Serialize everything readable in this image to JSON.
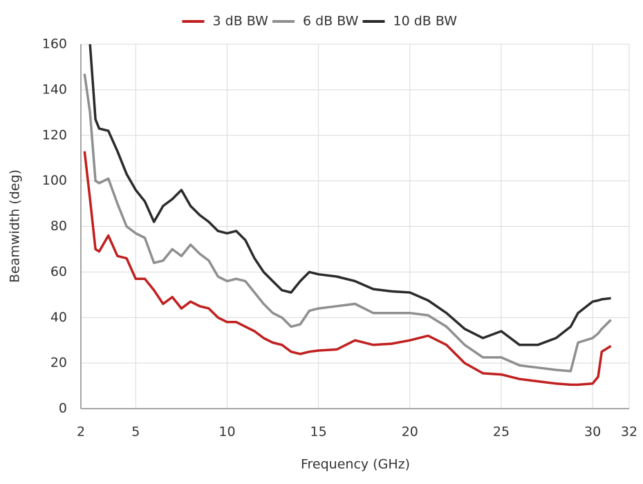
{
  "chart_data": {
    "type": "line",
    "x_label": "Frequency (GHz)",
    "y_label": "Beamwidth (deg)",
    "x": [
      2.2,
      2.5,
      2.8,
      3,
      3.5,
      4,
      4.5,
      5,
      5.5,
      6,
      6.5,
      7,
      7.5,
      8,
      8.5,
      9,
      9.5,
      10,
      10.5,
      11,
      11.5,
      12,
      12.5,
      13,
      13.5,
      14,
      14.5,
      15,
      16,
      17,
      18,
      19,
      20,
      21,
      22,
      23,
      24,
      25,
      26,
      27,
      28,
      28.8,
      29.2,
      30,
      30.3,
      30.5,
      31
    ],
    "series": [
      {
        "name": "3 dB BW",
        "color": "#c0201f",
        "values": [
          113,
          92,
          70,
          69,
          76,
          67,
          66,
          57,
          57,
          52,
          46,
          49,
          44,
          47,
          45,
          44,
          40,
          38,
          38,
          36,
          34,
          31,
          29,
          28,
          25,
          24,
          25,
          25.5,
          26,
          30,
          28,
          28.5,
          30,
          32,
          28,
          20,
          15.5,
          15,
          13,
          12,
          11,
          10.5,
          10.5,
          11,
          14,
          25,
          27.5
        ]
      },
      {
        "name": "6 dB BW",
        "color": "#8f8f8f",
        "values": [
          147,
          130,
          100,
          99,
          101,
          90,
          80,
          77,
          75,
          64,
          65,
          70,
          67,
          72,
          68,
          65,
          58,
          56,
          57,
          56,
          51,
          46,
          42,
          40,
          36,
          37,
          43,
          44,
          45,
          46,
          42,
          42,
          42,
          41,
          36,
          28,
          22.5,
          22.5,
          19,
          18,
          17,
          16.5,
          29,
          31,
          33,
          35,
          39
        ]
      },
      {
        "name": "10 dB BW",
        "color": "#2b2b2b",
        "values": [
          null,
          160,
          127,
          123,
          122,
          113,
          103,
          96,
          91,
          82,
          89,
          92,
          96,
          89,
          85,
          82,
          78,
          77,
          78,
          74,
          66,
          60,
          56,
          52,
          51,
          56,
          60,
          59,
          58,
          56,
          52.5,
          51.5,
          51,
          47.5,
          42,
          35,
          31,
          34,
          28,
          28,
          31,
          36,
          42,
          47,
          47.5,
          48,
          48.5
        ]
      }
    ],
    "xlim": [
      2,
      32
    ],
    "xticks": [
      2,
      5,
      10,
      15,
      20,
      25,
      30,
      32
    ],
    "ylim": [
      0,
      160
    ],
    "yticks": [
      0,
      20,
      40,
      60,
      80,
      100,
      120,
      140,
      160
    ],
    "grid": true,
    "legend": "top"
  }
}
